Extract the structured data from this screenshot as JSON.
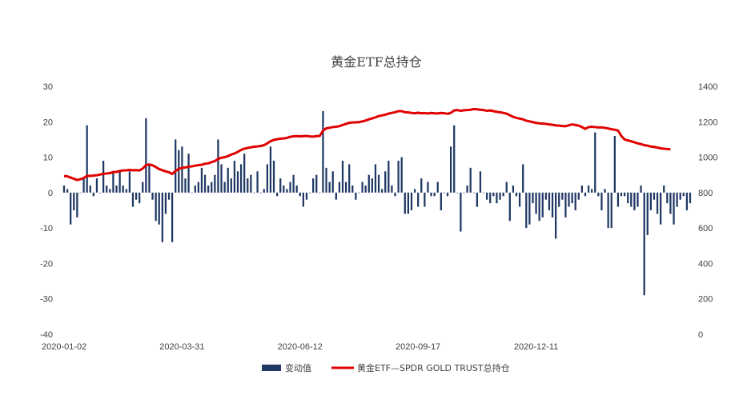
{
  "chart_data": {
    "type": "bar+line",
    "title": "黄金ETF总持仓",
    "x_tick_labels": [
      "2020-01-02",
      "2020-03-31",
      "2020-06-12",
      "2020-09-17",
      "2020-12-11"
    ],
    "x_tick_index": [
      0,
      36,
      72,
      108,
      144
    ],
    "y_left": {
      "ticks": [
        30,
        20,
        10,
        0,
        -10,
        -20,
        -30,
        -40
      ],
      "range": [
        -40,
        30
      ]
    },
    "y_right": {
      "ticks": [
        1400,
        1200,
        1000,
        800,
        600,
        400,
        200,
        0
      ],
      "range": [
        0,
        1400
      ]
    },
    "grid": false,
    "legend_position": "bottom",
    "series": [
      {
        "name": "变动值",
        "kind": "bar",
        "axis": "left",
        "color": "#1f3864",
        "values": [
          2,
          1,
          -9,
          -5,
          -7,
          0,
          4,
          19,
          2,
          -1,
          4,
          0,
          9,
          2,
          1,
          6,
          2,
          6,
          2,
          1,
          6,
          -4,
          -2,
          -3,
          3,
          21,
          8,
          -2,
          -8,
          -9,
          -14,
          -6,
          -2,
          -14,
          15,
          12,
          13,
          4,
          11,
          0,
          2,
          3,
          7,
          5,
          2,
          3,
          5,
          15,
          8,
          3,
          7,
          4,
          9,
          6,
          8,
          11,
          4,
          5,
          0,
          6,
          0,
          1,
          8,
          13,
          9,
          -1,
          4,
          2,
          1,
          3,
          5,
          2,
          -1,
          -4,
          -2,
          0,
          4,
          5,
          0,
          23,
          7,
          3,
          6,
          -2,
          3,
          9,
          3,
          8,
          2,
          -2,
          0,
          3,
          2,
          5,
          4,
          8,
          5,
          1,
          6,
          9,
          2,
          -1,
          9,
          10,
          -6,
          -6,
          -5,
          1,
          -4,
          4,
          -4,
          3,
          -1,
          -1,
          3,
          -5,
          0,
          -1,
          13,
          19,
          0,
          -11,
          0,
          2,
          7,
          0,
          -4,
          6,
          0,
          -2,
          -3,
          -1,
          -3,
          -2,
          -1,
          3,
          -8,
          2,
          -1,
          -4,
          8,
          -10,
          -9,
          -3,
          -6,
          -8,
          -7,
          -2,
          -5,
          -7,
          -13,
          -4,
          -2,
          -7,
          -4,
          -3,
          -5,
          -2,
          2,
          -1,
          2,
          1,
          17,
          -1,
          -5,
          1,
          -10,
          -10,
          16,
          -4,
          -1,
          -1,
          -3,
          -4,
          -5,
          -4,
          2,
          -29,
          -12,
          -5,
          -2,
          -6,
          -9,
          2,
          -3,
          -6,
          -9,
          -4,
          -2,
          -1,
          -5,
          -3
        ]
      },
      {
        "name": "黄金ETF—SPDR GOLD TRUST总持仓",
        "kind": "line",
        "axis": "right",
        "color": "#e00000",
        "values": [
          893,
          892,
          885,
          878,
          871,
          876,
          882,
          895,
          894,
          896,
          898,
          902,
          906,
          908,
          910,
          916,
          917,
          922,
          925,
          926,
          928,
          926,
          927,
          925,
          936,
          955,
          959,
          954,
          944,
          933,
          926,
          920,
          915,
          905,
          922,
          934,
          939,
          942,
          947,
          948,
          952,
          955,
          957,
          963,
          965,
          972,
          978,
          990,
          997,
          1000,
          1006,
          1015,
          1021,
          1030,
          1041,
          1048,
          1052,
          1056,
          1059,
          1061,
          1063,
          1068,
          1078,
          1090,
          1098,
          1101,
          1105,
          1106,
          1109,
          1115,
          1118,
          1119,
          1118,
          1119,
          1120,
          1117,
          1116,
          1119,
          1120,
          1150,
          1163,
          1166,
          1170,
          1172,
          1175,
          1182,
          1188,
          1194,
          1196,
          1197,
          1198,
          1202,
          1207,
          1214,
          1219,
          1225,
          1232,
          1236,
          1240,
          1246,
          1250,
          1254,
          1260,
          1260,
          1254,
          1253,
          1250,
          1248,
          1251,
          1248,
          1249,
          1247,
          1250,
          1248,
          1247,
          1250,
          1248,
          1245,
          1250,
          1264,
          1266,
          1262,
          1265,
          1266,
          1268,
          1272,
          1270,
          1268,
          1266,
          1262,
          1264,
          1260,
          1256,
          1254,
          1250,
          1246,
          1237,
          1228,
          1222,
          1218,
          1214,
          1206,
          1202,
          1198,
          1194,
          1191,
          1190,
          1188,
          1185,
          1183,
          1180,
          1178,
          1176,
          1175,
          1180,
          1185,
          1182,
          1178,
          1170,
          1160,
          1170,
          1172,
          1170,
          1168,
          1168,
          1166,
          1162,
          1158,
          1155,
          1150,
          1120,
          1100,
          1095,
          1090,
          1084,
          1078,
          1074,
          1068,
          1065,
          1060,
          1058,
          1054,
          1050,
          1048,
          1046,
          1045
        ]
      }
    ]
  }
}
